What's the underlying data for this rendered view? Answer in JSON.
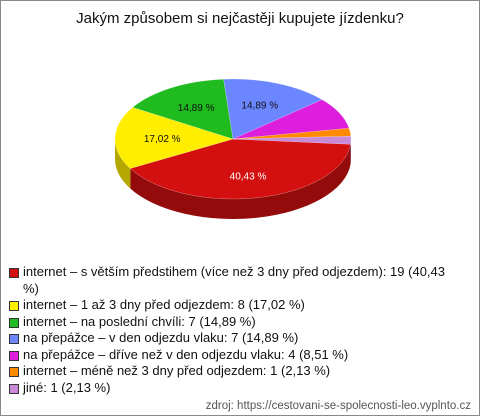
{
  "chart_data": {
    "type": "pie3d",
    "title": "Jakým způsobem si nejčastěji kupujete jízdenku?",
    "categories": [
      "internet – s větším předstihem (více než 3 dny před odjezdem): 19 (40,43 %)",
      "internet – 1 až 3 dny před odjezdem: 8 (17,02 %)",
      "internet – na poslední chvíli: 7 (14,89 %)",
      "na přepážce – v den odjezdu vlaku: 7 (14,89 %)",
      "na přepážce – dříve než v den odjezdu vlaku: 4 (8,51 %)",
      "internet – méně než 3 dny před odjezdem: 1 (2,13 %)",
      "jiné: 1 (2,13 %)"
    ],
    "values": [
      40.43,
      17.02,
      14.89,
      14.89,
      8.51,
      2.13,
      2.13
    ],
    "value_labels": [
      "40,43 %",
      "17,02 %",
      "14,89 %",
      "14,89 %",
      null,
      null,
      null
    ],
    "colors": [
      "#d40f0f",
      "#ffee00",
      "#1fbb1f",
      "#6b86ff",
      "#dd1fdd",
      "#ff8a00",
      "#c98ad8"
    ],
    "source": "zdroj: https://cestovani-se-spolecnosti-leo.vyplnto.cz"
  }
}
